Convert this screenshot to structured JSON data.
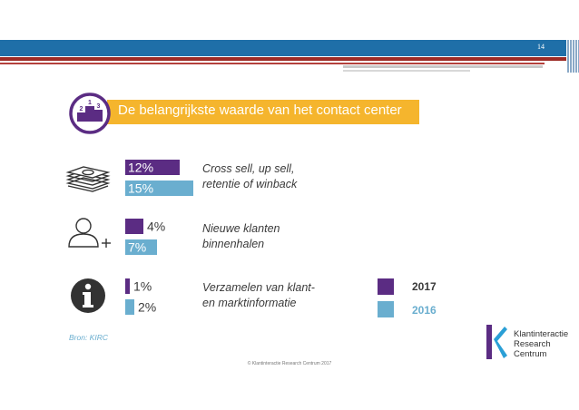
{
  "page": {
    "number": "14",
    "copyright": "© Klantinteractie Research Centrum 2017"
  },
  "title": "De belangrijkste waarde van het contact center",
  "podium_digits": [
    "2",
    "1",
    "3"
  ],
  "icons": [
    "money-icon",
    "add-user-icon",
    "info-icon"
  ],
  "chart_data": {
    "type": "bar",
    "orientation": "horizontal",
    "categories": [
      "Cross sell, up sell, retentie of winback",
      "Nieuwe klanten binnenhalen",
      "Verzamelen van klant- en marktinformatie"
    ],
    "category_lines": [
      [
        "Cross sell, up sell,",
        "retentie of winback"
      ],
      [
        "Nieuwe klanten",
        "binnenhalen"
      ],
      [
        "Verzamelen van klant-",
        "en marktinformatie"
      ]
    ],
    "series": [
      {
        "name": "2017",
        "values": [
          12,
          4,
          1
        ],
        "labels": [
          "12%",
          "4%",
          "1%"
        ],
        "color": "#5b2c83"
      },
      {
        "name": "2016",
        "values": [
          15,
          7,
          2
        ],
        "labels": [
          "15%",
          "7%",
          "2%"
        ],
        "color": "#6aaecf"
      }
    ],
    "unit": "%",
    "legend_position": "right"
  },
  "source": "Bron: KIRC",
  "logo": {
    "lines": [
      "Klantinteractie",
      "Research",
      "Centrum"
    ],
    "colors": {
      "purple": "#5b2c83",
      "blue": "#2a9fd6"
    }
  },
  "colors": {
    "header_blue": "#1f6fa8",
    "header_red": "#9c2b26",
    "title_bar": "#f5b52d"
  }
}
